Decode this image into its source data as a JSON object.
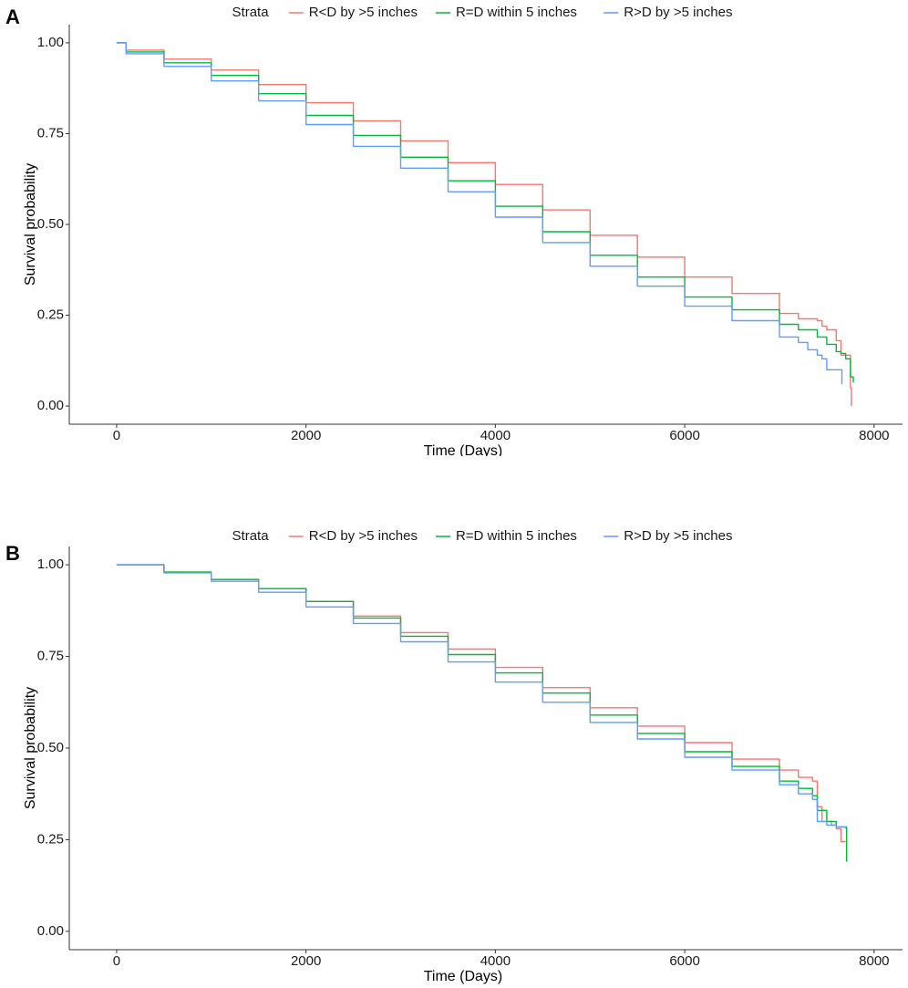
{
  "chart_data": [
    {
      "type": "line",
      "panel_label": "A",
      "legend": {
        "title": "Strata",
        "position": "top"
      },
      "xlabel": "Time (Days)",
      "ylabel": "Survival probability",
      "xlim": [
        -500,
        8300
      ],
      "ylim": [
        -0.05,
        1.05
      ],
      "xticks": [
        0,
        2000,
        4000,
        6000,
        8000
      ],
      "xtick_labels": [
        "0",
        "2000",
        "4000",
        "6000",
        "8000"
      ],
      "yticks": [
        0,
        0.25,
        0.5,
        0.75,
        1.0
      ],
      "ytick_labels": [
        "0.00",
        "0.25",
        "0.50",
        "0.75",
        "1.00"
      ],
      "grid": false,
      "series": [
        {
          "name": "R<D by >5 inches",
          "color": "#F8766D",
          "x": [
            0,
            100,
            500,
            1000,
            1500,
            2000,
            2500,
            3000,
            3500,
            4000,
            4500,
            5000,
            5500,
            6000,
            6500,
            7000,
            7200,
            7400,
            7450,
            7500,
            7600,
            7650,
            7700,
            7740,
            7750,
            7760
          ],
          "y": [
            1.0,
            0.98,
            0.955,
            0.925,
            0.885,
            0.835,
            0.785,
            0.73,
            0.67,
            0.61,
            0.54,
            0.47,
            0.41,
            0.355,
            0.31,
            0.255,
            0.24,
            0.235,
            0.22,
            0.21,
            0.18,
            0.14,
            0.14,
            0.14,
            0.05,
            0.0
          ]
        },
        {
          "name": "R=D within 5 inches",
          "color": "#00BA38",
          "x": [
            0,
            100,
            500,
            1000,
            1500,
            2000,
            2500,
            3000,
            3500,
            4000,
            4500,
            5000,
            5500,
            6000,
            6500,
            7000,
            7200,
            7400,
            7500,
            7600,
            7650,
            7700,
            7750,
            7780
          ],
          "y": [
            1.0,
            0.975,
            0.945,
            0.91,
            0.86,
            0.8,
            0.745,
            0.685,
            0.62,
            0.55,
            0.48,
            0.415,
            0.355,
            0.3,
            0.265,
            0.225,
            0.21,
            0.19,
            0.17,
            0.15,
            0.145,
            0.13,
            0.08,
            0.065
          ]
        },
        {
          "name": "R>D by >5 inches",
          "color": "#619CFF",
          "x": [
            0,
            100,
            500,
            1000,
            1500,
            2000,
            2500,
            3000,
            3500,
            4000,
            4500,
            5000,
            5500,
            6000,
            6500,
            7000,
            7200,
            7300,
            7400,
            7450,
            7500,
            7600,
            7650,
            7660
          ],
          "y": [
            1.0,
            0.97,
            0.935,
            0.895,
            0.84,
            0.775,
            0.715,
            0.655,
            0.59,
            0.52,
            0.45,
            0.385,
            0.33,
            0.275,
            0.235,
            0.19,
            0.175,
            0.155,
            0.14,
            0.13,
            0.1,
            0.1,
            0.1,
            0.06
          ]
        }
      ]
    },
    {
      "type": "line",
      "panel_label": "B",
      "legend": {
        "title": "Strata",
        "position": "top"
      },
      "xlabel": "Time (Days)",
      "ylabel": "Survival probability",
      "xlim": [
        -500,
        8300
      ],
      "ylim": [
        -0.05,
        1.05
      ],
      "xticks": [
        0,
        2000,
        4000,
        6000,
        8000
      ],
      "xtick_labels": [
        "0",
        "2000",
        "4000",
        "6000",
        "8000"
      ],
      "yticks": [
        0,
        0.25,
        0.5,
        0.75,
        1.0
      ],
      "ytick_labels": [
        "0.00",
        "0.25",
        "0.50",
        "0.75",
        "1.00"
      ],
      "grid": false,
      "series": [
        {
          "name": "R<D by >5 inches",
          "color": "#F8766D",
          "x": [
            0,
            500,
            1000,
            1500,
            2000,
            2500,
            3000,
            3500,
            4000,
            4500,
            5000,
            5500,
            6000,
            6500,
            7000,
            7200,
            7350,
            7400,
            7450,
            7550,
            7600,
            7650,
            7700
          ],
          "y": [
            1.0,
            0.98,
            0.96,
            0.935,
            0.9,
            0.86,
            0.815,
            0.77,
            0.72,
            0.665,
            0.61,
            0.56,
            0.515,
            0.47,
            0.44,
            0.42,
            0.41,
            0.34,
            0.3,
            0.29,
            0.28,
            0.245,
            0.245
          ]
        },
        {
          "name": "R=D within 5 inches",
          "color": "#00BA38",
          "x": [
            0,
            500,
            1000,
            1500,
            2000,
            2500,
            3000,
            3500,
            4000,
            4500,
            5000,
            5500,
            6000,
            6500,
            7000,
            7200,
            7350,
            7400,
            7500,
            7600,
            7650,
            7700,
            7710
          ],
          "y": [
            1.0,
            0.98,
            0.96,
            0.935,
            0.9,
            0.855,
            0.805,
            0.755,
            0.705,
            0.65,
            0.59,
            0.54,
            0.49,
            0.45,
            0.41,
            0.39,
            0.37,
            0.33,
            0.3,
            0.285,
            0.285,
            0.285,
            0.19
          ]
        },
        {
          "name": "R>D by >5 inches",
          "color": "#619CFF",
          "x": [
            0,
            500,
            1000,
            1500,
            2000,
            2500,
            3000,
            3500,
            4000,
            4500,
            5000,
            5500,
            6000,
            6500,
            7000,
            7200,
            7350,
            7400,
            7450,
            7500,
            7600,
            7700
          ],
          "y": [
            1.0,
            0.978,
            0.955,
            0.925,
            0.885,
            0.84,
            0.79,
            0.735,
            0.68,
            0.625,
            0.57,
            0.525,
            0.475,
            0.44,
            0.4,
            0.375,
            0.36,
            0.3,
            0.3,
            0.29,
            0.285,
            0.28
          ]
        }
      ]
    }
  ]
}
